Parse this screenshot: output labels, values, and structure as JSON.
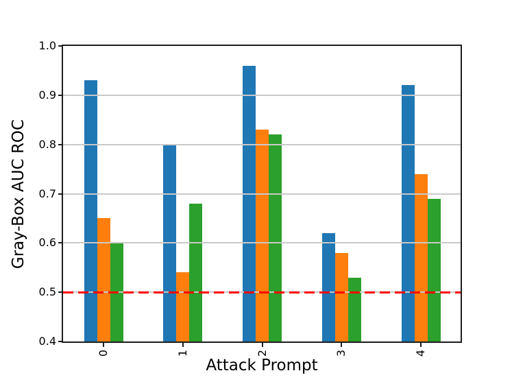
{
  "chart_data": {
    "type": "bar",
    "title": "",
    "xlabel": "Attack Prompt",
    "ylabel": "Gray-Box AUC ROC",
    "categories": [
      "0",
      "1",
      "2",
      "3",
      "4"
    ],
    "series": [
      {
        "color": "#1f77b4",
        "values": [
          0.93,
          0.8,
          0.96,
          0.62,
          0.92
        ]
      },
      {
        "color": "#ff7f0e",
        "values": [
          0.65,
          0.54,
          0.83,
          0.58,
          0.74
        ]
      },
      {
        "color": "#2ca02c",
        "values": [
          0.6,
          0.68,
          0.82,
          0.53,
          0.69
        ]
      }
    ],
    "ylim": [
      0.4,
      1.0
    ],
    "yticks": [
      1.0,
      0.9,
      0.8,
      0.7,
      0.6,
      0.5,
      0.4
    ],
    "ytick_labels": [
      "1.0",
      "0.9",
      "0.8",
      "0.7",
      "0.6",
      "0.5",
      "0.4"
    ],
    "xtick_rotation_deg": 90,
    "grid": true,
    "grid_color": "#c9c9c9",
    "grid_above_bars": true,
    "legend": false,
    "reference_line": {
      "y": 0.5,
      "color": "#ff0000",
      "style": "dashed"
    }
  }
}
